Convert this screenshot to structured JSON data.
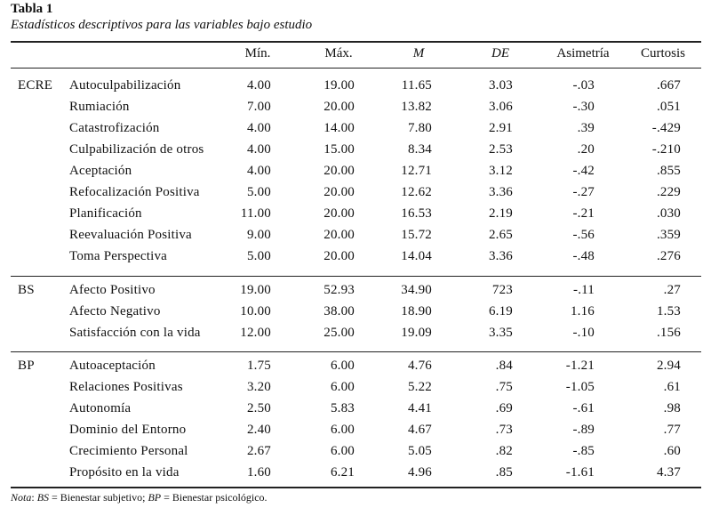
{
  "table": {
    "title": "Tabla 1",
    "subtitle": "Estadísticos descriptivos para las variables bajo estudio",
    "headers": {
      "min": "Mín.",
      "max": "Máx.",
      "m": "M",
      "de": "DE",
      "asimetria": "Asimetría",
      "curtosis": "Curtosis"
    },
    "groups": [
      {
        "label": "ECRE",
        "rows": [
          {
            "variable": "Autoculpabilización",
            "min": "4.00",
            "max": "19.00",
            "m": "11.65",
            "de": "3.03",
            "asimetria": "-.03",
            "curtosis": ".667"
          },
          {
            "variable": "Rumiación",
            "min": "7.00",
            "max": "20.00",
            "m": "13.82",
            "de": "3.06",
            "asimetria": "-.30",
            "curtosis": ".051"
          },
          {
            "variable": "Catastrofización",
            "min": "4.00",
            "max": "14.00",
            "m": "7.80",
            "de": "2.91",
            "asimetria": ".39",
            "curtosis": "-.429"
          },
          {
            "variable": "Culpabilización de otros",
            "min": "4.00",
            "max": "15.00",
            "m": "8.34",
            "de": "2.53",
            "asimetria": ".20",
            "curtosis": "-.210"
          },
          {
            "variable": "Aceptación",
            "min": "4.00",
            "max": "20.00",
            "m": "12.71",
            "de": "3.12",
            "asimetria": "-.42",
            "curtosis": ".855"
          },
          {
            "variable": "Refocalización Positiva",
            "min": "5.00",
            "max": "20.00",
            "m": "12.62",
            "de": "3.36",
            "asimetria": "-.27",
            "curtosis": ".229"
          },
          {
            "variable": "Planificación",
            "min": "11.00",
            "max": "20.00",
            "m": "16.53",
            "de": "2.19",
            "asimetria": "-.21",
            "curtosis": ".030"
          },
          {
            "variable": "Reevaluación Positiva",
            "min": "9.00",
            "max": "20.00",
            "m": "15.72",
            "de": "2.65",
            "asimetria": "-.56",
            "curtosis": ".359"
          },
          {
            "variable": "Toma Perspectiva",
            "min": "5.00",
            "max": "20.00",
            "m": "14.04",
            "de": "3.36",
            "asimetria": "-.48",
            "curtosis": ".276"
          }
        ]
      },
      {
        "label": "BS",
        "rows": [
          {
            "variable": "Afecto Positivo",
            "min": "19.00",
            "max": "52.93",
            "m": "34.90",
            "de": "723",
            "asimetria": "-.11",
            "curtosis": ".27"
          },
          {
            "variable": "Afecto Negativo",
            "min": "10.00",
            "max": "38.00",
            "m": "18.90",
            "de": "6.19",
            "asimetria": "1.16",
            "curtosis": "1.53"
          },
          {
            "variable": "Satisfacción con la vida",
            "min": "12.00",
            "max": "25.00",
            "m": "19.09",
            "de": "3.35",
            "asimetria": "-.10",
            "curtosis": ".156"
          }
        ]
      },
      {
        "label": "BP",
        "rows": [
          {
            "variable": "Autoaceptación",
            "min": "1.75",
            "max": "6.00",
            "m": "4.76",
            "de": ".84",
            "asimetria": "-1.21",
            "curtosis": "2.94"
          },
          {
            "variable": "Relaciones Positivas",
            "min": "3.20",
            "max": "6.00",
            "m": "5.22",
            "de": ".75",
            "asimetria": "-1.05",
            "curtosis": ".61"
          },
          {
            "variable": "Autonomía",
            "min": "2.50",
            "max": "5.83",
            "m": "4.41",
            "de": ".69",
            "asimetria": "-.61",
            "curtosis": ".98"
          },
          {
            "variable": "Dominio del Entorno",
            "min": "2.40",
            "max": "6.00",
            "m": "4.67",
            "de": ".73",
            "asimetria": "-.89",
            "curtosis": ".77"
          },
          {
            "variable": "Crecimiento Personal",
            "min": "2.67",
            "max": "6.00",
            "m": "5.05",
            "de": ".82",
            "asimetria": "-.85",
            "curtosis": ".60"
          },
          {
            "variable": "Propósito en la vida",
            "min": "1.60",
            "max": "6.21",
            "m": "4.96",
            "de": ".85",
            "asimetria": "-1.61",
            "curtosis": "4.37"
          }
        ]
      }
    ]
  },
  "note": {
    "prefix": "Nota",
    "sep1": ": ",
    "abbr1": "BS",
    "def1": " = Bienestar subjetivo; ",
    "abbr2": "BP",
    "def2": " = Bienestar psicológico."
  }
}
